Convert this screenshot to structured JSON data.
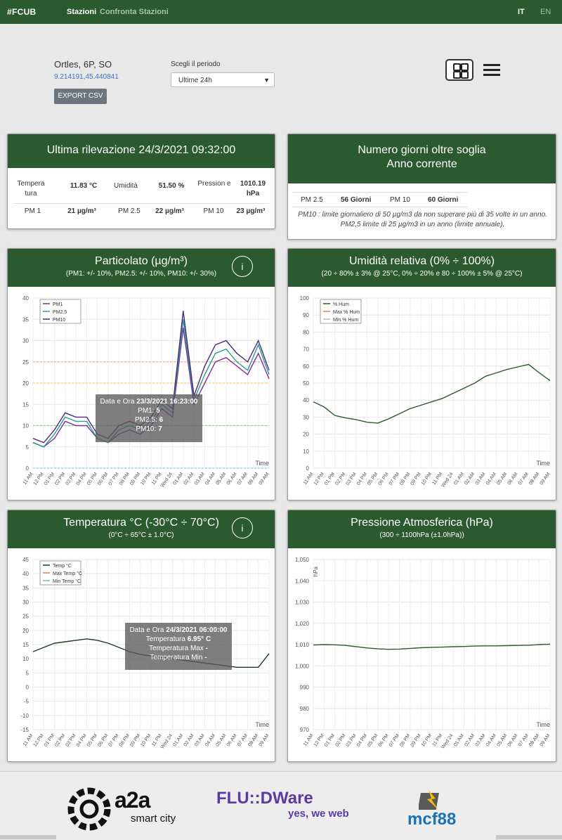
{
  "nav": {
    "brand": "#FCUB",
    "stations": "Stazioni",
    "compare": "Confronta Stazioni",
    "lang_it": "IT",
    "lang_en": "EN"
  },
  "header": {
    "station_name": "Ortles, 6P, SO",
    "coords": "9.214191,45.440841",
    "export_label": "EXPORT CSV",
    "period_label": "Scegli il periodo",
    "period_value": "Ultime 24h"
  },
  "last_reading": {
    "title": "Ultima rilevazione 24/3/2021 09:32:00",
    "temp_label": "Tempera tura",
    "temp_value": "11.83 °C",
    "hum_label": "Umidità",
    "hum_value": "51.50 %",
    "press_label": "Pression e",
    "press_value": "1010.19 hPa",
    "pm1_label": "PM 1",
    "pm1_value": "21 µg/m³",
    "pm25_label": "PM 2.5",
    "pm25_value": "22 µg/m³",
    "pm10_label": "PM 10",
    "pm10_value": "23 µg/m³"
  },
  "threshold": {
    "title_l1": "Numero giorni oltre soglia",
    "title_l2": "Anno corrente",
    "pm25_label": "PM 2.5",
    "pm25_value": "56 Giorni",
    "pm10_label": "PM 10",
    "pm10_value": "60 Giorni",
    "note": "PM10 : limite giornaliero di 50 µg/m3 da non superare più di 35 volte in un anno. PM2,5 limite di 25 µg/m3 in un anno (limite annuale)."
  },
  "colors": {
    "brand_green": "#2b5a2e",
    "pm1": "#7b2fa0",
    "pm25": "#2a9d8f",
    "pm10": "#4b2b7a",
    "hum": "#2b5a2e",
    "temp": "#1f3a1f"
  },
  "charts": {
    "pm": {
      "title": "Particolato (µg/m³)",
      "subtitle": "(PM1: +/- 10%, PM2.5: +/- 10%, PM10: +/- 30%)",
      "info": "i",
      "time_label": "Time",
      "legend": [
        "PM1",
        "PM2.5",
        "PM10"
      ],
      "tooltip": {
        "l1_label": "Data e Ora",
        "l1_value": "23/3/2021 16:23:00",
        "l2_label": "PM1:",
        "l2_value": "5",
        "l3_label": "PM2.5:",
        "l3_value": "6",
        "l4_label": "PM10:",
        "l4_value": "7"
      }
    },
    "hum": {
      "title": "Umidità relativa (0% ÷ 100%)",
      "subtitle": "(20 ÷ 80% ± 3% @ 25°C, 0% ÷ 20% e 80 ÷ 100% ± 5% @ 25°C)",
      "time_label": "Time",
      "legend": [
        "% Hum",
        "Max % Hum",
        "Min % Hum"
      ]
    },
    "temp": {
      "title": "Temperatura °C (-30°C ÷ 70°C)",
      "subtitle": "(0°C ÷ 65°C ± 1.0°C)",
      "info": "i",
      "time_label": "Time",
      "legend": [
        "Temp °C",
        "Max Temp °C",
        "Min Temp °C"
      ],
      "tooltip": {
        "l1_label": "Data e Ora",
        "l1_value": "24/3/2021 06:00:00",
        "l2_label": "Temperatura",
        "l2_value": "6.95° C",
        "l3_label": "Temperatura Max",
        "l3_value": "-",
        "l4_label": "Temperatura Min",
        "l4_value": "-"
      }
    },
    "press": {
      "title": "Pressione Atmosferica (hPa)",
      "subtitle": "(300 ÷ 1100hPa (±1.0hPa))",
      "time_label": "Time",
      "unit_label": "hPa"
    }
  },
  "chart_data": [
    {
      "type": "line",
      "name": "pm",
      "x": [
        "11 AM",
        "12 PM",
        "01 PM",
        "02 PM",
        "03 PM",
        "04 PM",
        "05 PM",
        "06 PM",
        "07 PM",
        "08 PM",
        "09 PM",
        "10 PM",
        "11 PM",
        "Wed 24",
        "01 AM",
        "02 AM",
        "03 AM",
        "04 AM",
        "05 AM",
        "06 AM",
        "07 AM",
        "08 AM",
        "09 AM"
      ],
      "ylim": [
        0,
        40
      ],
      "yticks": [
        0,
        5,
        10,
        15,
        20,
        25,
        30,
        35,
        40
      ],
      "thresholds": [
        25,
        20,
        10,
        0
      ],
      "series": [
        {
          "name": "PM1",
          "values": [
            6,
            5,
            7,
            11,
            10,
            10,
            7,
            6,
            8,
            9,
            8,
            10,
            14,
            12,
            33,
            15,
            20,
            25,
            26,
            24,
            22,
            27,
            21
          ]
        },
        {
          "name": "PM2.5",
          "values": [
            6,
            5,
            8,
            12,
            11,
            11,
            7,
            6,
            9,
            10,
            9,
            11,
            15,
            13,
            35,
            16,
            22,
            27,
            28,
            25,
            23,
            29,
            22
          ]
        },
        {
          "name": "PM10",
          "values": [
            7,
            6,
            9,
            13,
            12,
            12,
            8,
            7,
            10,
            11,
            10,
            12,
            16,
            14,
            37,
            17,
            24,
            29,
            30,
            27,
            25,
            30,
            23
          ]
        }
      ]
    },
    {
      "type": "line",
      "name": "hum",
      "x": [
        "11 AM",
        "12 PM",
        "01 PM",
        "02 PM",
        "03 PM",
        "04 PM",
        "05 PM",
        "06 PM",
        "07 PM",
        "08 PM",
        "09 PM",
        "10 PM",
        "11 PM",
        "Wed 24",
        "01 AM",
        "02 AM",
        "03 AM",
        "04 AM",
        "05 AM",
        "06 AM",
        "07 AM",
        "08 AM",
        "09 AM"
      ],
      "ylim": [
        0,
        100
      ],
      "yticks": [
        0,
        10,
        20,
        30,
        40,
        50,
        60,
        70,
        80,
        90,
        100
      ],
      "series": [
        {
          "name": "% Hum",
          "values": [
            39,
            36,
            31,
            29.5,
            28.5,
            27,
            26.5,
            29,
            32,
            35,
            37,
            39,
            41,
            44,
            47,
            50,
            54,
            56,
            58,
            59.5,
            61,
            56,
            51.5
          ]
        }
      ]
    },
    {
      "type": "line",
      "name": "temp",
      "x": [
        "11 AM",
        "12 PM",
        "01 PM",
        "02 PM",
        "03 PM",
        "04 PM",
        "05 PM",
        "06 PM",
        "07 PM",
        "08 PM",
        "09 PM",
        "10 PM",
        "11 PM",
        "Wed 24",
        "01 AM",
        "02 AM",
        "03 AM",
        "04 AM",
        "05 AM",
        "06 AM",
        "07 AM",
        "08 AM",
        "09 AM"
      ],
      "ylim": [
        -15,
        45
      ],
      "yticks": [
        -15,
        -10,
        -5,
        0,
        5,
        10,
        15,
        20,
        25,
        30,
        35,
        40,
        45
      ],
      "series": [
        {
          "name": "Temp °C",
          "values": [
            12.5,
            14,
            15.5,
            16,
            16.5,
            17,
            16.5,
            15.5,
            14,
            12.5,
            11.5,
            11,
            10.5,
            10,
            9.5,
            9,
            8.5,
            8,
            7.5,
            7,
            7,
            7,
            11.8
          ]
        }
      ]
    },
    {
      "type": "line",
      "name": "press",
      "x": [
        "11 AM",
        "12 PM",
        "01 PM",
        "02 PM",
        "03 PM",
        "04 PM",
        "05 PM",
        "06 PM",
        "07 PM",
        "08 PM",
        "09 PM",
        "10 PM",
        "11 PM",
        "Wed 24",
        "01 AM",
        "02 AM",
        "03 AM",
        "04 AM",
        "05 AM",
        "06 AM",
        "07 AM",
        "08 AM",
        "09 AM"
      ],
      "ylim": [
        970,
        1050
      ],
      "yticks": [
        970,
        980,
        990,
        1000,
        1010,
        1020,
        1030,
        1040,
        1050
      ],
      "ytick_labels": [
        "970",
        "980",
        "990",
        "1,000",
        "1,010",
        "1,020",
        "1,030",
        "1,040",
        "1,050"
      ],
      "series": [
        {
          "name": "hPa",
          "values": [
            1009.8,
            1010,
            1009.9,
            1009.6,
            1009,
            1008.4,
            1008,
            1007.8,
            1007.9,
            1008.2,
            1008.5,
            1008.7,
            1008.8,
            1009,
            1009.1,
            1009.3,
            1009.4,
            1009.4,
            1009.5,
            1009.6,
            1009.7,
            1010,
            1010.2
          ]
        }
      ]
    }
  ],
  "footer": {
    "a2a": "a2a",
    "a2a_sub": "smart city",
    "fluid": "FLU::DWare",
    "fluid_sub": "yes, we web",
    "mcf": "mcf88"
  }
}
